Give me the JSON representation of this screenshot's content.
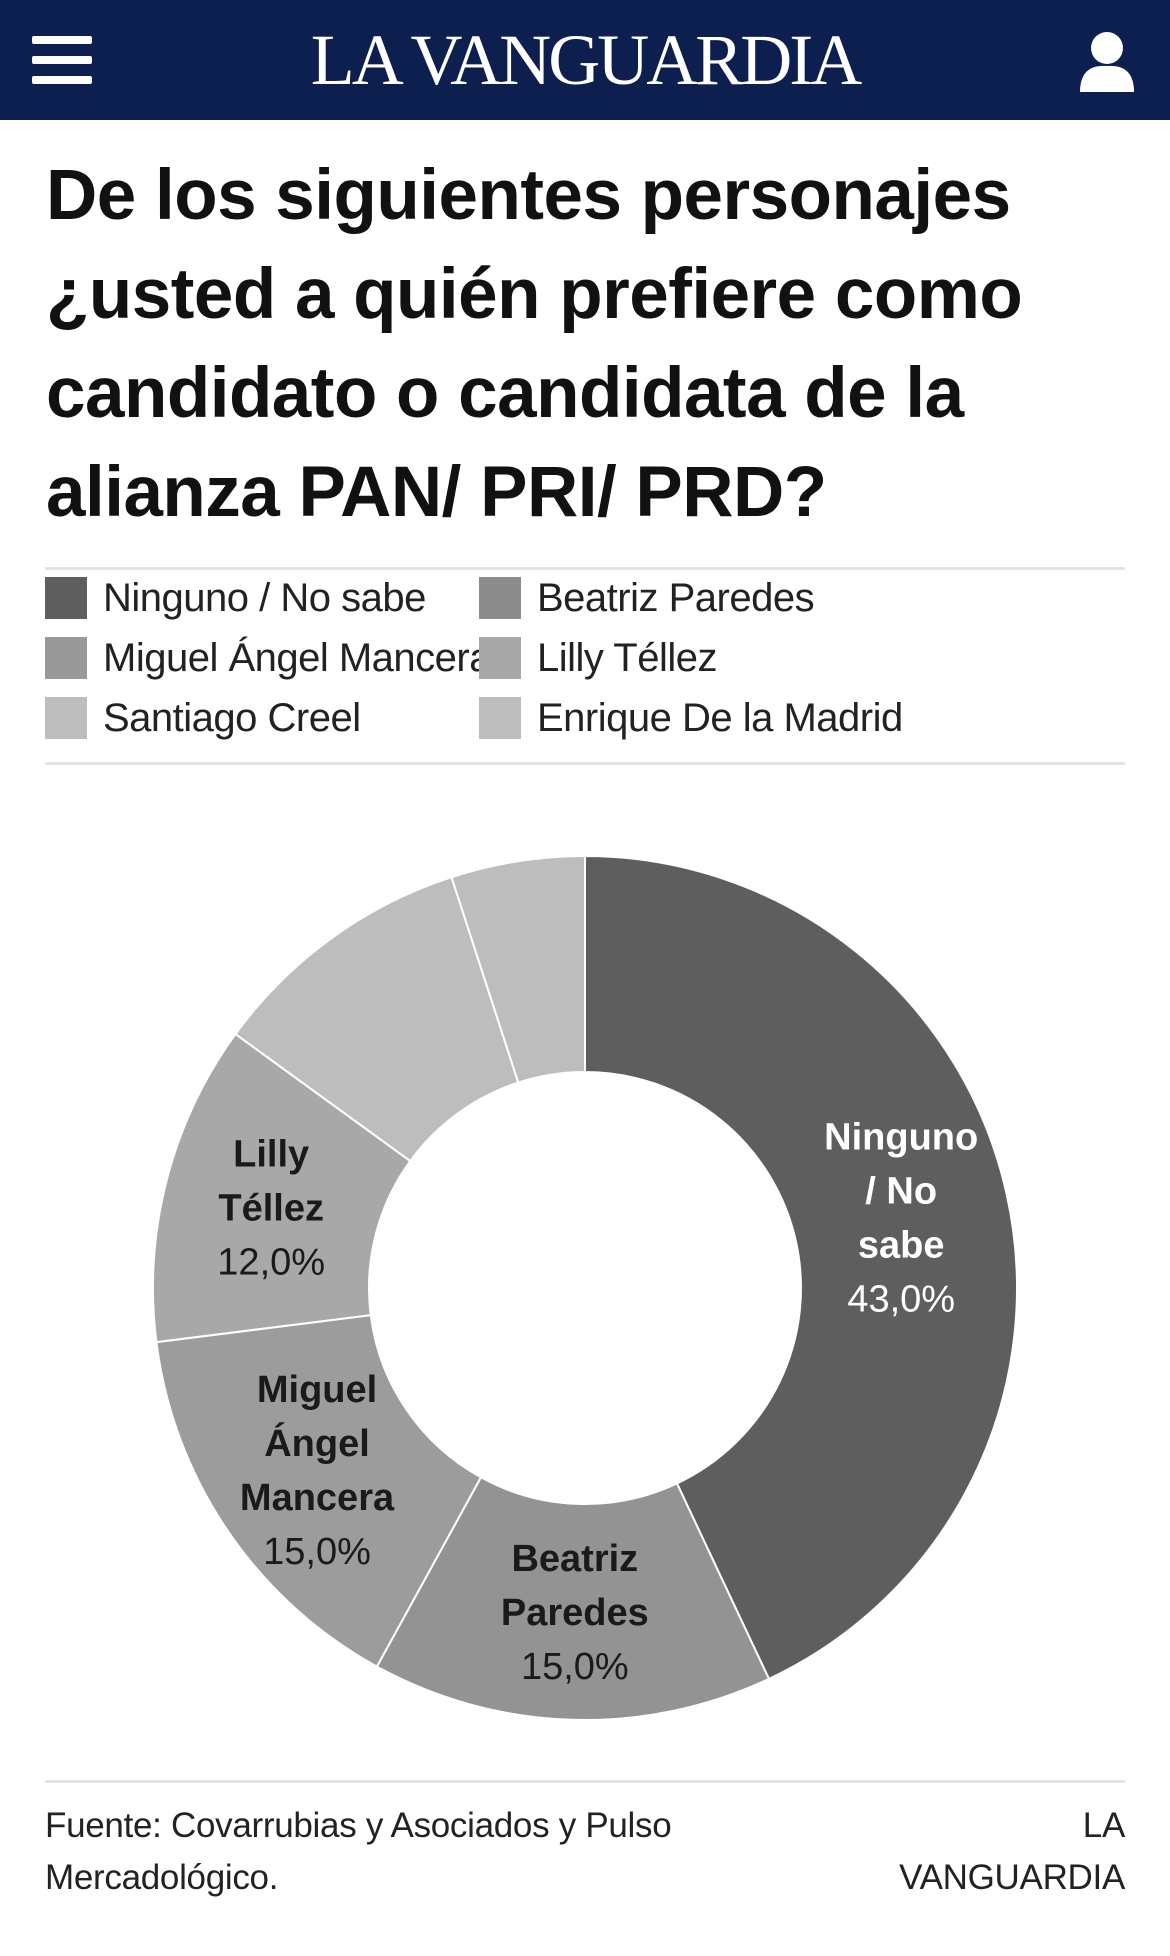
{
  "header": {
    "brand": "LA VANGUARDIA",
    "menu_icon": "hamburger-menu-icon",
    "user_icon": "user-icon",
    "background": "#0d1f4f"
  },
  "chart_data": {
    "type": "pie",
    "donut": true,
    "title": "De los siguientes personajes ¿usted a quién prefiere como candidato o candidata de la alianza PAN/ PRI/ PRD?",
    "legend_position": "top",
    "legend": [
      {
        "label": "Ninguno / No sabe",
        "color": "#5e5e5e"
      },
      {
        "label": "Beatriz Paredes",
        "color": "#8c8c8c"
      },
      {
        "label": "Miguel Ángel Mancera",
        "color": "#999999"
      },
      {
        "label": "Lilly Téllez",
        "color": "#a8a8a8"
      },
      {
        "label": "Santiago Creel",
        "color": "#bdbdbd"
      },
      {
        "label": "Enrique De la Madrid",
        "color": "#bdbdbd"
      }
    ],
    "slices": [
      {
        "name": "Ninguno / No sabe",
        "value": 43.0,
        "value_label": "43,0%",
        "label_lines": [
          "Ninguno",
          "/ No",
          "sabe"
        ],
        "color": "#5e5e5e",
        "text_color": "#ffffff"
      },
      {
        "name": "Beatriz Paredes",
        "value": 15.0,
        "value_label": "15,0%",
        "label_lines": [
          "Beatriz",
          "Paredes"
        ],
        "color": "#939393",
        "text_color": "#1a1a1a"
      },
      {
        "name": "Miguel Ángel Mancera",
        "value": 15.0,
        "value_label": "15,0%",
        "label_lines": [
          "Miguel",
          "Ángel",
          "Mancera"
        ],
        "color": "#9c9c9c",
        "text_color": "#1a1a1a"
      },
      {
        "name": "Lilly Téllez",
        "value": 12.0,
        "value_label": "12,0%",
        "label_lines": [
          "Lilly",
          "Téllez"
        ],
        "color": "#a8a8a8",
        "text_color": "#1a1a1a"
      },
      {
        "name": "Santiago Creel",
        "value": 10.0,
        "value_label": "",
        "label_lines": [],
        "color": "#bdbdbd",
        "text_color": "#1a1a1a"
      },
      {
        "name": "Enrique De la Madrid",
        "value": 5.0,
        "value_label": "",
        "label_lines": [],
        "color": "#bdbdbd",
        "text_color": "#1a1a1a"
      }
    ]
  },
  "footer": {
    "source": "Fuente: Covarrubias y Asociados y Pulso Mercadológico.",
    "credit": "LA VANGUARDIA"
  }
}
